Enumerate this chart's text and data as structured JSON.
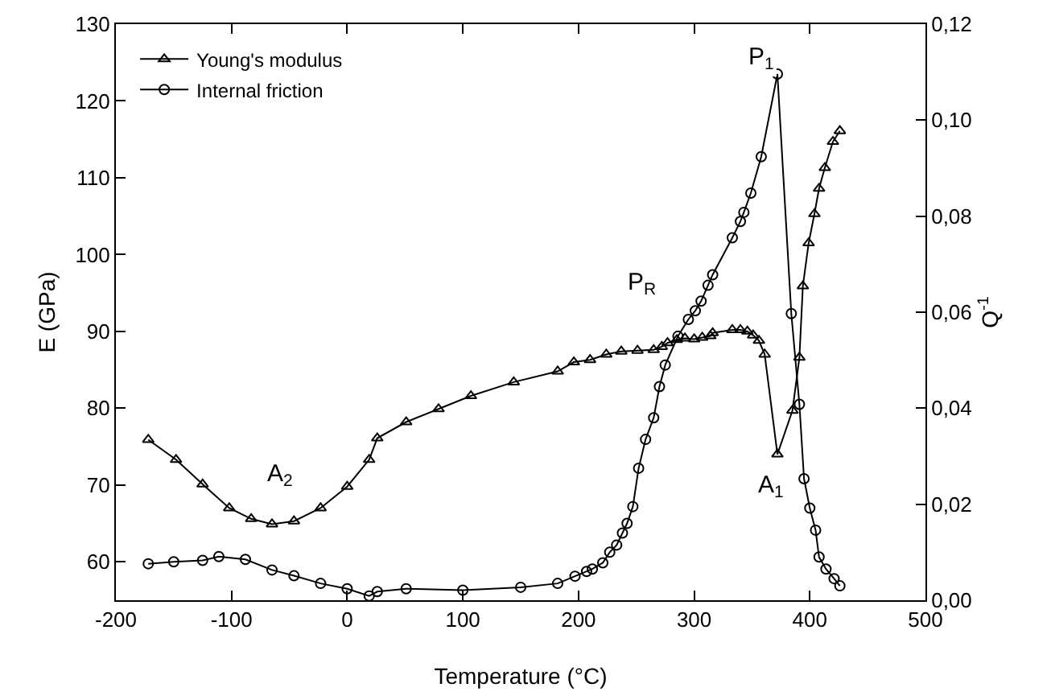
{
  "chart_data": {
    "type": "line",
    "xlabel": "Temperature (°C)",
    "ylabel": "E (GPa)",
    "y2label": "Q$^{-1}$",
    "xlim": [
      -200,
      500
    ],
    "xticks": [
      -200,
      -100,
      0,
      100,
      200,
      300,
      400,
      500
    ],
    "ylim": [
      55,
      130
    ],
    "yticks": [
      60,
      70,
      80,
      90,
      100,
      110,
      120,
      130
    ],
    "y2lim": [
      0,
      0.12
    ],
    "y2ticks": [
      {
        "value": 0,
        "label": "0,00"
      },
      {
        "value": 0.02,
        "label": "0,02"
      },
      {
        "value": 0.04,
        "label": "0,04"
      },
      {
        "value": 0.06,
        "label": "0,06"
      },
      {
        "value": 0.08,
        "label": "0,08"
      },
      {
        "value": 0.1,
        "label": "0,10"
      },
      {
        "value": 0.12,
        "label": "0,12"
      }
    ],
    "grid": false,
    "legend": "top left",
    "line_style": "solid",
    "series": [
      {
        "name": "Young's modulus",
        "color": "#000000",
        "marker": "triangle",
        "x": [
          -172,
          -148,
          -125,
          -102,
          -83,
          -65,
          -46,
          -23,
          0,
          19,
          26,
          51,
          79,
          107,
          144,
          182,
          196,
          210,
          224,
          237,
          251,
          265,
          272,
          277,
          285,
          292,
          300,
          307,
          314,
          316,
          333,
          340,
          346,
          351,
          356,
          361,
          372,
          385,
          391,
          394,
          399,
          404,
          408,
          413,
          420,
          426
        ],
        "values": [
          75.9,
          73.3,
          70.1,
          67.0,
          65.6,
          64.9,
          65.3,
          67.0,
          69.8,
          73.3,
          76.1,
          78.2,
          79.9,
          81.6,
          83.4,
          84.8,
          86.0,
          86.3,
          87.0,
          87.4,
          87.5,
          87.6,
          88.0,
          88.5,
          88.9,
          89.1,
          89.0,
          89.2,
          89.4,
          89.8,
          90.2,
          90.2,
          90.0,
          89.5,
          88.8,
          87.0,
          74.0,
          79.7,
          86.6,
          95.9,
          101.5,
          105.3,
          108.6,
          111.3,
          114.7,
          116.1
        ]
      },
      {
        "name": "Internal friction",
        "color": "#000000",
        "marker": "circle",
        "axis": "y2",
        "x": [
          -172,
          -150,
          -125,
          -111,
          -88,
          -65,
          -46,
          -23,
          0,
          19,
          26,
          51,
          100,
          150,
          182,
          197,
          207,
          212,
          221,
          227,
          233,
          238,
          242,
          247,
          252,
          258,
          265,
          270,
          275,
          286,
          295,
          301,
          306,
          312,
          316,
          333,
          340,
          343,
          349,
          358,
          372,
          384,
          391,
          395,
          400,
          405,
          408,
          414,
          421,
          426
        ],
        "values": [
          0.0076,
          0.008,
          0.0083,
          0.0091,
          0.0085,
          0.0063,
          0.0051,
          0.0035,
          0.0024,
          0.0009,
          0.0018,
          0.0024,
          0.0021,
          0.0027,
          0.0035,
          0.005,
          0.006,
          0.0065,
          0.0078,
          0.01,
          0.0115,
          0.014,
          0.016,
          0.0195,
          0.0275,
          0.0335,
          0.038,
          0.0445,
          0.049,
          0.055,
          0.0585,
          0.0603,
          0.0623,
          0.0656,
          0.0678,
          0.0755,
          0.0789,
          0.0808,
          0.0848,
          0.0924,
          0.1096,
          0.0597,
          0.0408,
          0.0253,
          0.0192,
          0.0146,
          0.009,
          0.0065,
          0.0045,
          0.003
        ]
      }
    ],
    "annotations": [
      "A$_{2}$",
      "P$_{R}$",
      "P$_{1}$",
      "A$_{1}$"
    ]
  }
}
